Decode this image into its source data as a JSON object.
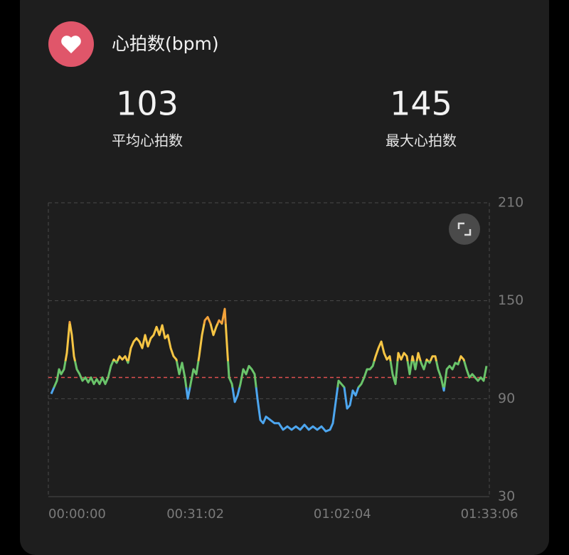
{
  "header": {
    "title": "心拍数(bpm)"
  },
  "stats": [
    {
      "value": 103,
      "label": "平均心拍数"
    },
    {
      "value": 145,
      "label": "最大心拍数"
    }
  ],
  "chart_data": {
    "type": "line",
    "x": [
      36,
      72,
      108,
      135,
      162,
      198,
      234,
      270,
      297,
      324,
      360,
      396,
      432,
      469,
      505,
      541,
      577,
      613,
      649,
      685,
      721,
      757,
      793,
      829,
      865,
      901,
      937,
      973,
      1009,
      1045,
      1081,
      1117,
      1153,
      1189,
      1225,
      1261,
      1297,
      1333,
      1370,
      1406,
      1442,
      1478,
      1514,
      1550,
      1586,
      1622,
      1658,
      1694,
      1730,
      1766,
      1802,
      1838,
      1874,
      1910,
      1946,
      1982,
      2018,
      2054,
      2090,
      2126,
      2162,
      2198,
      2234,
      2271,
      2289,
      2325,
      2361,
      2397,
      2433,
      2469,
      2505,
      2541,
      2577,
      2613,
      2649,
      2685,
      2721,
      2757,
      2811,
      2865,
      2919,
      2973,
      3027,
      3081,
      3135,
      3190,
      3244,
      3298,
      3352,
      3406,
      3460,
      3514,
      3568,
      3604,
      3640,
      3676,
      3712,
      3748,
      3784,
      3820,
      3856,
      3892,
      3928,
      3964,
      4000,
      4036,
      4073,
      4109,
      4145,
      4181,
      4217,
      4253,
      4289,
      4325,
      4361,
      4397,
      4433,
      4469,
      4505,
      4541,
      4577,
      4613,
      4649,
      4685,
      4721,
      4757,
      4793,
      4829,
      4865,
      4901,
      4937,
      4974,
      5010,
      5046,
      5082,
      5118,
      5154,
      5190,
      5226,
      5262,
      5298,
      5334,
      5370,
      5406,
      5442,
      5478,
      5514,
      5550
    ],
    "series": [
      {
        "values": [
          93,
          97,
          101,
          108,
          105,
          108,
          118,
          137,
          129,
          116,
          108,
          105,
          101,
          103,
          100,
          103,
          99,
          102,
          99,
          103,
          99,
          103,
          110,
          114,
          112,
          116,
          114,
          116,
          112,
          121,
          125,
          127,
          125,
          121,
          129,
          122,
          127,
          129,
          134,
          129,
          135,
          127,
          129,
          121,
          116,
          114,
          105,
          112,
          103,
          90,
          99,
          108,
          105,
          116,
          129,
          138,
          140,
          136,
          129,
          134,
          138,
          136,
          145,
          116,
          103,
          99,
          88,
          92,
          99,
          108,
          105,
          110,
          108,
          105,
          90,
          77,
          75,
          79,
          77,
          75,
          75,
          71,
          73,
          71,
          73,
          71,
          74,
          71,
          73,
          71,
          73,
          70,
          71,
          75,
          88,
          101,
          99,
          97,
          84,
          86,
          95,
          92,
          97,
          99,
          103,
          108,
          108,
          110,
          116,
          121,
          125,
          118,
          114,
          116,
          105,
          99,
          118,
          114,
          118,
          116,
          105,
          116,
          108,
          118,
          112,
          108,
          114,
          112,
          116,
          116,
          108,
          103,
          95,
          108,
          110,
          108,
          112,
          111,
          116,
          114,
          108,
          103,
          105,
          103,
          101,
          103,
          101,
          110
        ],
        "color_zones": [
          {
            "max": 97,
            "color": "#4da6ef"
          },
          {
            "max": 113,
            "color": "#6ac46a"
          },
          {
            "max": 136,
            "color": "#f6c544"
          },
          {
            "color": "#f3a23a"
          }
        ]
      }
    ],
    "xlim": [
      0,
      5586
    ],
    "ylim": [
      30,
      210
    ],
    "xticks": [
      {
        "value": 0,
        "label": "00:00:00"
      },
      {
        "value": 1862,
        "label": "00:31:02"
      },
      {
        "value": 3724,
        "label": "01:02:04"
      },
      {
        "value": 5586,
        "label": "01:33:06"
      }
    ],
    "yticks": [
      30,
      90,
      150,
      210
    ],
    "reference_line_color": "#e05050"
  }
}
